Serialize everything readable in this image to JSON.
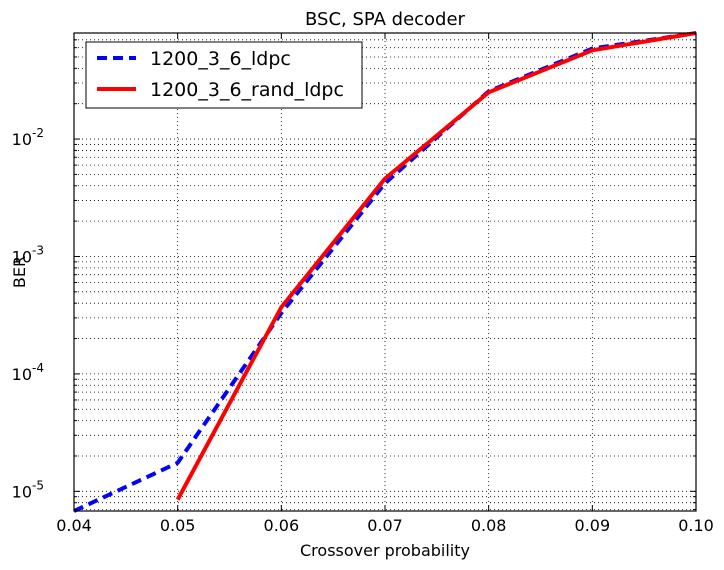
{
  "chart_data": {
    "type": "line",
    "title": "BSC, SPA decoder",
    "xlabel": "Crossover probability",
    "ylabel": "BER",
    "xlim": [
      0.04,
      0.1
    ],
    "ylim": [
      6.8e-06,
      0.08
    ],
    "yscale": "log",
    "grid": true,
    "legend_position": "top-left",
    "x_ticks": [
      "0.04",
      "0.05",
      "0.06",
      "0.07",
      "0.08",
      "0.09",
      "0.10"
    ],
    "y_ticks": [
      {
        "base": "10",
        "exp": "-5",
        "value": 1e-05
      },
      {
        "base": "10",
        "exp": "-4",
        "value": 0.0001
      },
      {
        "base": "10",
        "exp": "-3",
        "value": 0.001
      },
      {
        "base": "10",
        "exp": "-2",
        "value": 0.01
      }
    ],
    "series": [
      {
        "name": "1200_3_6_ldpc",
        "color": "#0000ff",
        "style": "dashed",
        "x": [
          0.04,
          0.05,
          0.06,
          0.07,
          0.08,
          0.09,
          0.1
        ],
        "y": [
          6.8e-06,
          1.75e-05,
          0.00033,
          0.0042,
          0.0255,
          0.059,
          0.08
        ]
      },
      {
        "name": "1200_3_6_rand_ldpc",
        "color": "#ff0000",
        "style": "solid",
        "x": [
          0.05,
          0.06,
          0.07,
          0.08,
          0.09,
          0.1
        ],
        "y": [
          8.5e-06,
          0.00037,
          0.0046,
          0.025,
          0.057,
          0.08
        ]
      }
    ]
  }
}
